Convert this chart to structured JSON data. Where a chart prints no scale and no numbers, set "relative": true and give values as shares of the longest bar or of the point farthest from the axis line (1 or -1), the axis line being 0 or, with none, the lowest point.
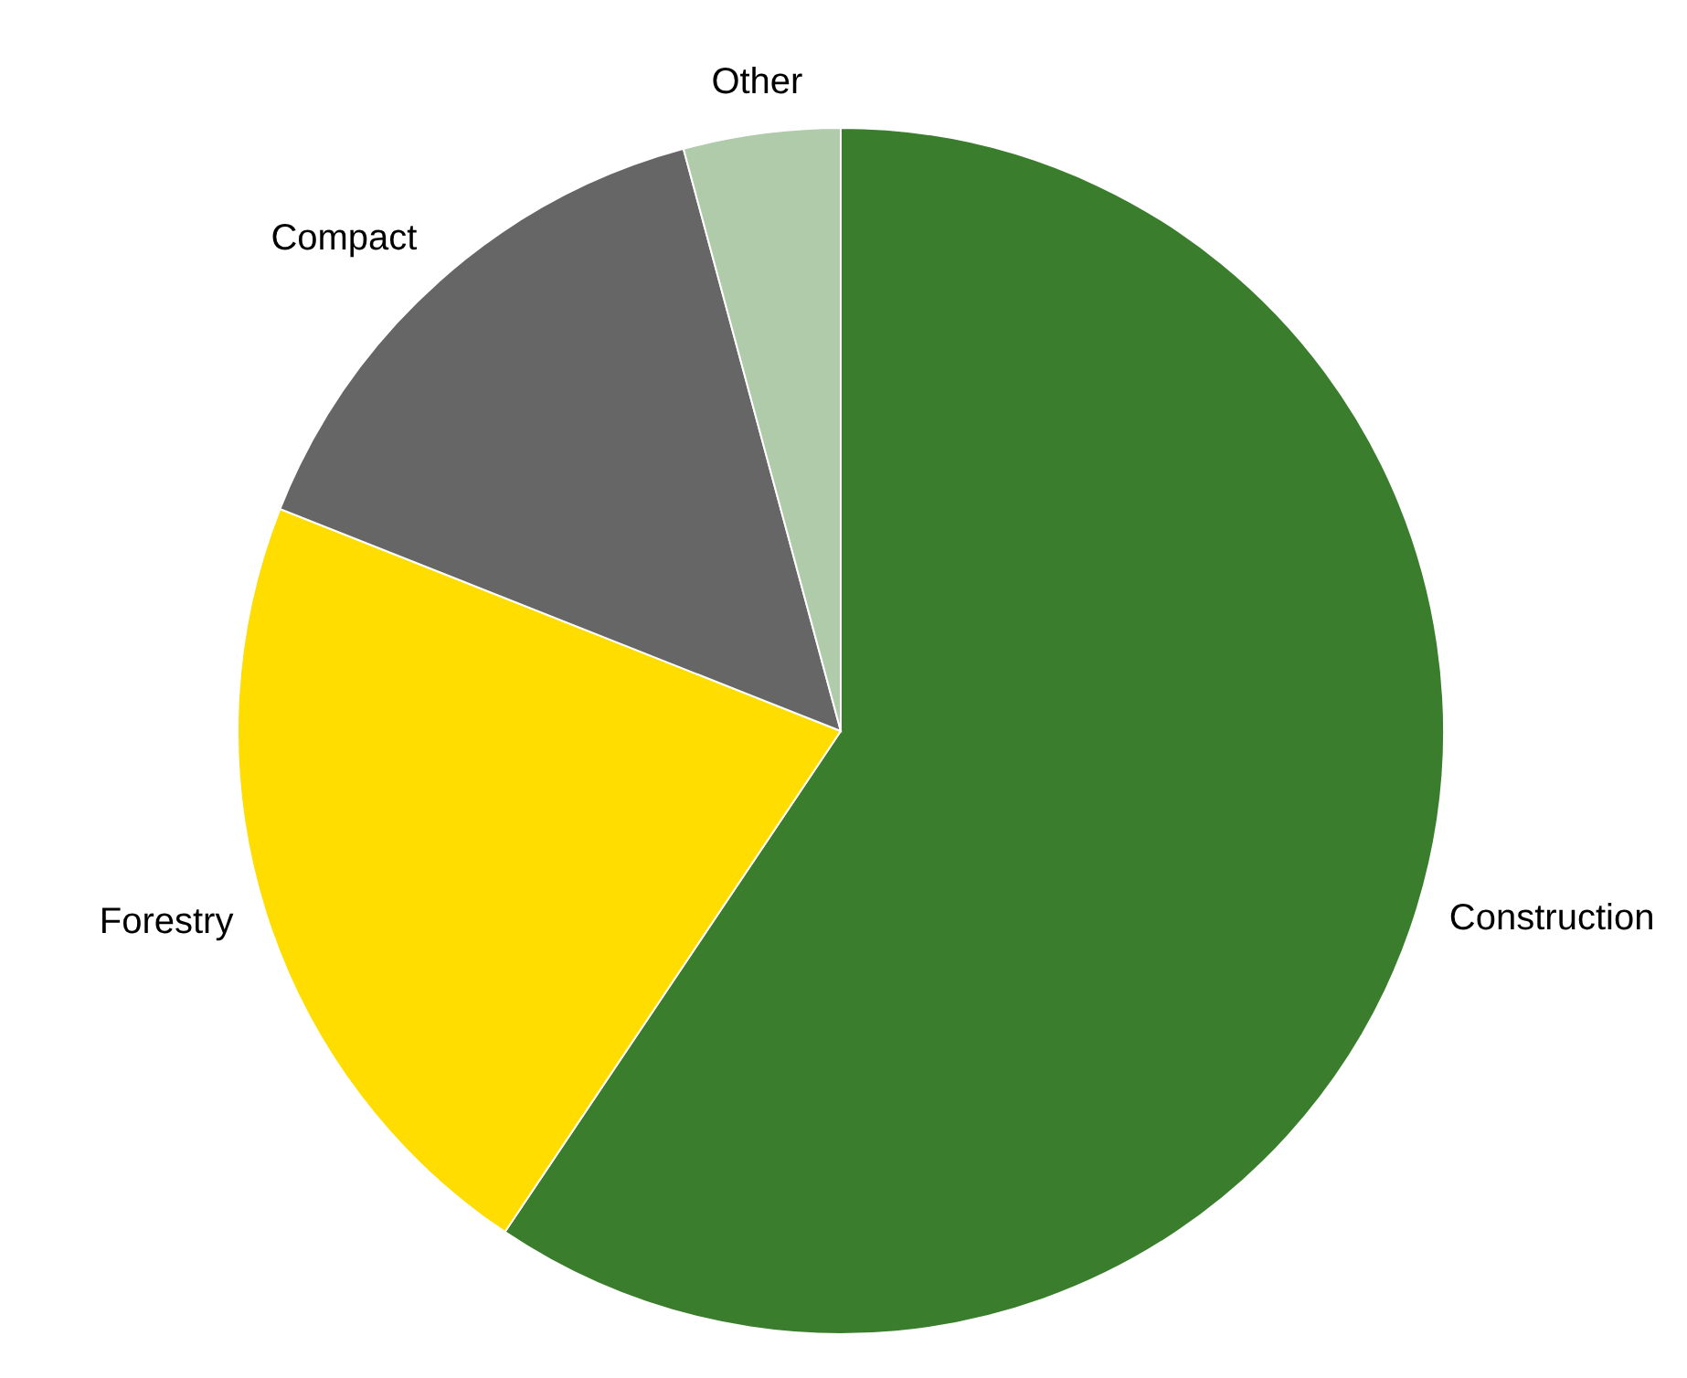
{
  "chart_data": {
    "type": "pie",
    "relative": true,
    "categories": [
      "Construction",
      "Forestry",
      "Compact",
      "Other"
    ],
    "values": [
      59.4,
      21.6,
      14.8,
      4.2
    ],
    "colors": [
      "#3a7d2c",
      "#ffdd00",
      "#666666",
      "#b0cbaa"
    ]
  }
}
